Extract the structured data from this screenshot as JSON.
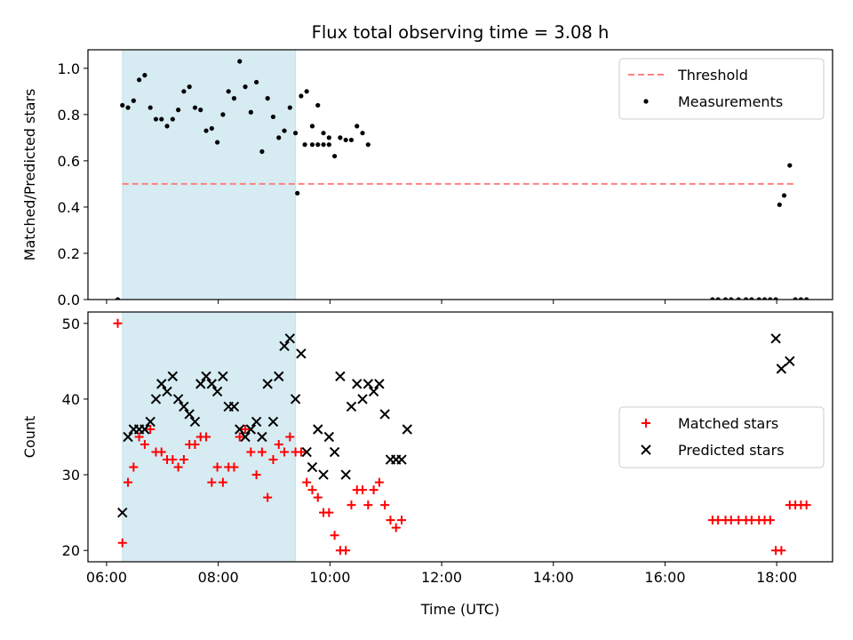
{
  "figure": {
    "title": "Flux total observing time = 3.08 h"
  },
  "chart_data": [
    {
      "type": "scatter",
      "title": "Flux total observing time = 3.08 h",
      "xlabel": "",
      "ylabel": "Matched/Predicted stars",
      "xlim": [
        "05:40",
        "19:00"
      ],
      "ylim": [
        0,
        1.08
      ],
      "x_ticks": [
        "06:00",
        "08:00",
        "10:00",
        "12:00",
        "14:00",
        "16:00",
        "18:00"
      ],
      "y_ticks": [
        "0.0",
        "0.2",
        "0.4",
        "0.6",
        "0.8",
        "1.0"
      ],
      "highlight_span": {
        "x": [
          "06:17",
          "09:23"
        ],
        "color": "#add8e6"
      },
      "legend": {
        "loc": "upper right",
        "entries": [
          "Threshold",
          "Measurements"
        ]
      },
      "series": [
        {
          "name": "Threshold",
          "kind": "dashed-line",
          "color": "#ff8080",
          "x": [
            "06:17",
            "18:20"
          ],
          "y": [
            0.5,
            0.5
          ]
        },
        {
          "name": "Measurements",
          "kind": "points",
          "color": "#000000",
          "points": [
            [
              "06:12",
              0.0
            ],
            [
              "06:17",
              0.84
            ],
            [
              "06:23",
              0.83
            ],
            [
              "06:29",
              0.86
            ],
            [
              "06:35",
              0.95
            ],
            [
              "06:41",
              0.97
            ],
            [
              "06:47",
              0.83
            ],
            [
              "06:53",
              0.78
            ],
            [
              "06:59",
              0.78
            ],
            [
              "07:05",
              0.75
            ],
            [
              "07:11",
              0.78
            ],
            [
              "07:17",
              0.82
            ],
            [
              "07:23",
              0.9
            ],
            [
              "07:29",
              0.92
            ],
            [
              "07:35",
              0.83
            ],
            [
              "07:41",
              0.82
            ],
            [
              "07:47",
              0.73
            ],
            [
              "07:53",
              0.74
            ],
            [
              "07:59",
              0.68
            ],
            [
              "08:05",
              0.8
            ],
            [
              "08:11",
              0.9
            ],
            [
              "08:17",
              0.87
            ],
            [
              "08:23",
              1.03
            ],
            [
              "08:29",
              0.92
            ],
            [
              "08:35",
              0.81
            ],
            [
              "08:41",
              0.94
            ],
            [
              "08:47",
              0.64
            ],
            [
              "08:53",
              0.87
            ],
            [
              "08:59",
              0.79
            ],
            [
              "09:05",
              0.7
            ],
            [
              "09:11",
              0.73
            ],
            [
              "09:17",
              0.83
            ],
            [
              "09:23",
              0.72
            ],
            [
              "09:29",
              0.88
            ],
            [
              "09:35",
              0.9
            ],
            [
              "09:41",
              0.75
            ],
            [
              "09:47",
              0.84
            ],
            [
              "09:53",
              0.72
            ],
            [
              "09:59",
              0.67
            ],
            [
              "09:25",
              0.46
            ],
            [
              "09:33",
              0.67
            ],
            [
              "09:41",
              0.67
            ],
            [
              "09:47",
              0.67
            ],
            [
              "09:53",
              0.67
            ],
            [
              "09:59",
              0.7
            ],
            [
              "10:05",
              0.62
            ],
            [
              "10:11",
              0.7
            ],
            [
              "10:17",
              0.69
            ],
            [
              "10:23",
              0.69
            ],
            [
              "10:29",
              0.75
            ],
            [
              "10:35",
              0.72
            ],
            [
              "10:41",
              0.67
            ],
            [
              "16:51",
              0.0
            ],
            [
              "16:57",
              0.0
            ],
            [
              "17:05",
              0.0
            ],
            [
              "17:11",
              0.0
            ],
            [
              "17:19",
              0.0
            ],
            [
              "17:27",
              0.0
            ],
            [
              "17:33",
              0.0
            ],
            [
              "17:41",
              0.0
            ],
            [
              "17:47",
              0.0
            ],
            [
              "17:53",
              0.0
            ],
            [
              "17:59",
              0.0
            ],
            [
              "18:03",
              0.41
            ],
            [
              "18:08",
              0.45
            ],
            [
              "18:14",
              0.58
            ],
            [
              "18:20",
              0.0
            ],
            [
              "18:26",
              0.0
            ],
            [
              "18:32",
              0.0
            ]
          ]
        }
      ]
    },
    {
      "type": "scatter",
      "title": "",
      "xlabel": "Time (UTC)",
      "ylabel": "Count",
      "xlim": [
        "05:40",
        "19:00"
      ],
      "ylim": [
        18.5,
        51.5
      ],
      "x_ticks": [
        "06:00",
        "08:00",
        "10:00",
        "12:00",
        "14:00",
        "16:00",
        "18:00"
      ],
      "y_ticks": [
        "20",
        "30",
        "40",
        "50"
      ],
      "highlight_span": {
        "x": [
          "06:17",
          "09:23"
        ],
        "color": "#add8e6"
      },
      "legend": {
        "loc": "center right",
        "entries": [
          "Matched stars",
          "Predicted stars"
        ]
      },
      "series": [
        {
          "name": "Matched stars",
          "marker": "plus",
          "color": "#ff0000",
          "points": [
            [
              "06:12",
              50
            ],
            [
              "06:17",
              21
            ],
            [
              "06:23",
              29
            ],
            [
              "06:29",
              31
            ],
            [
              "06:35",
              35
            ],
            [
              "06:41",
              34
            ],
            [
              "06:47",
              36
            ],
            [
              "06:53",
              33
            ],
            [
              "06:59",
              33
            ],
            [
              "07:05",
              32
            ],
            [
              "07:11",
              32
            ],
            [
              "07:17",
              31
            ],
            [
              "07:23",
              32
            ],
            [
              "07:29",
              34
            ],
            [
              "07:35",
              34
            ],
            [
              "07:41",
              35
            ],
            [
              "07:47",
              35
            ],
            [
              "07:53",
              29
            ],
            [
              "07:59",
              31
            ],
            [
              "08:05",
              29
            ],
            [
              "08:11",
              31
            ],
            [
              "08:17",
              31
            ],
            [
              "08:23",
              35
            ],
            [
              "08:29",
              36
            ],
            [
              "08:35",
              33
            ],
            [
              "08:41",
              30
            ],
            [
              "08:47",
              33
            ],
            [
              "08:53",
              27
            ],
            [
              "08:59",
              32
            ],
            [
              "09:05",
              34
            ],
            [
              "09:11",
              33
            ],
            [
              "09:17",
              35
            ],
            [
              "09:23",
              33
            ],
            [
              "09:29",
              33
            ],
            [
              "09:35",
              29
            ],
            [
              "09:41",
              28
            ],
            [
              "09:47",
              27
            ],
            [
              "09:53",
              25
            ],
            [
              "09:59",
              25
            ],
            [
              "10:05",
              22
            ],
            [
              "10:11",
              20
            ],
            [
              "10:17",
              20
            ],
            [
              "10:23",
              26
            ],
            [
              "10:29",
              28
            ],
            [
              "10:35",
              28
            ],
            [
              "10:41",
              26
            ],
            [
              "10:47",
              28
            ],
            [
              "10:53",
              29
            ],
            [
              "10:59",
              26
            ],
            [
              "11:05",
              24
            ],
            [
              "11:11",
              23
            ],
            [
              "11:17",
              24
            ],
            [
              "16:51",
              24
            ],
            [
              "16:57",
              24
            ],
            [
              "17:05",
              24
            ],
            [
              "17:11",
              24
            ],
            [
              "17:19",
              24
            ],
            [
              "17:27",
              24
            ],
            [
              "17:33",
              24
            ],
            [
              "17:41",
              24
            ],
            [
              "17:47",
              24
            ],
            [
              "17:53",
              24
            ],
            [
              "17:59",
              20
            ],
            [
              "18:05",
              20
            ],
            [
              "18:14",
              26
            ],
            [
              "18:20",
              26
            ],
            [
              "18:26",
              26
            ],
            [
              "18:32",
              26
            ]
          ]
        },
        {
          "name": "Predicted stars",
          "marker": "x",
          "color": "#000000",
          "points": [
            [
              "06:17",
              25
            ],
            [
              "06:23",
              35
            ],
            [
              "06:29",
              36
            ],
            [
              "06:35",
              36
            ],
            [
              "06:41",
              36
            ],
            [
              "06:47",
              37
            ],
            [
              "06:53",
              40
            ],
            [
              "06:59",
              42
            ],
            [
              "07:05",
              41
            ],
            [
              "07:11",
              43
            ],
            [
              "07:17",
              40
            ],
            [
              "07:23",
              39
            ],
            [
              "07:29",
              38
            ],
            [
              "07:35",
              37
            ],
            [
              "07:41",
              42
            ],
            [
              "07:47",
              43
            ],
            [
              "07:53",
              42
            ],
            [
              "07:59",
              41
            ],
            [
              "08:05",
              43
            ],
            [
              "08:11",
              39
            ],
            [
              "08:17",
              39
            ],
            [
              "08:23",
              36
            ],
            [
              "08:29",
              35
            ],
            [
              "08:35",
              36
            ],
            [
              "08:41",
              37
            ],
            [
              "08:47",
              35
            ],
            [
              "08:53",
              42
            ],
            [
              "08:59",
              37
            ],
            [
              "09:05",
              43
            ],
            [
              "09:11",
              47
            ],
            [
              "09:17",
              48
            ],
            [
              "09:23",
              40
            ],
            [
              "09:29",
              46
            ],
            [
              "09:35",
              33
            ],
            [
              "09:41",
              31
            ],
            [
              "09:47",
              36
            ],
            [
              "09:53",
              30
            ],
            [
              "09:59",
              35
            ],
            [
              "10:05",
              33
            ],
            [
              "10:11",
              43
            ],
            [
              "10:17",
              30
            ],
            [
              "10:23",
              39
            ],
            [
              "10:29",
              42
            ],
            [
              "10:35",
              40
            ],
            [
              "10:41",
              42
            ],
            [
              "10:47",
              41
            ],
            [
              "10:53",
              42
            ],
            [
              "10:59",
              38
            ],
            [
              "11:05",
              32
            ],
            [
              "11:11",
              32
            ],
            [
              "11:17",
              32
            ],
            [
              "11:23",
              36
            ],
            [
              "17:59",
              48
            ],
            [
              "18:05",
              44
            ],
            [
              "18:14",
              45
            ]
          ]
        }
      ]
    }
  ]
}
